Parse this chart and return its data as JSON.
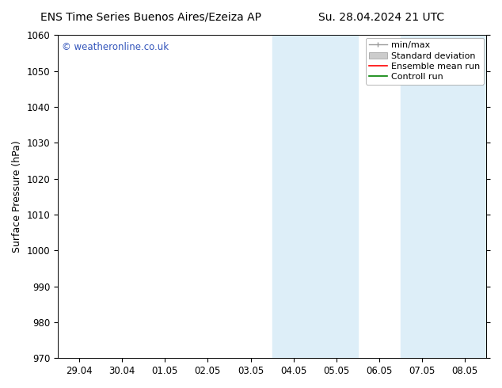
{
  "title_left": "ENS Time Series Buenos Aires/Ezeiza AP",
  "title_right": "Su. 28.04.2024 21 UTC",
  "ylabel": "Surface Pressure (hPa)",
  "ylim": [
    970,
    1060
  ],
  "yticks": [
    970,
    980,
    990,
    1000,
    1010,
    1020,
    1030,
    1040,
    1050,
    1060
  ],
  "x_tick_labels": [
    "29.04",
    "30.04",
    "01.05",
    "02.05",
    "03.05",
    "04.05",
    "05.05",
    "06.05",
    "07.05",
    "08.05"
  ],
  "x_tick_positions": [
    0,
    1,
    2,
    3,
    4,
    5,
    6,
    7,
    8,
    9
  ],
  "xlim_min": -0.5,
  "xlim_max": 9.5,
  "shaded_regions": [
    {
      "x_start": 4.5,
      "x_end": 6.5
    },
    {
      "x_start": 7.5,
      "x_end": 9.5
    }
  ],
  "shaded_color": "#ddeef8",
  "watermark_text": "© weatheronline.co.uk",
  "watermark_color": "#3355bb",
  "bg_color": "#ffffff",
  "plot_bg_color": "#ffffff",
  "title_fontsize": 10,
  "tick_fontsize": 8.5,
  "ylabel_fontsize": 9,
  "legend_fontsize": 8
}
